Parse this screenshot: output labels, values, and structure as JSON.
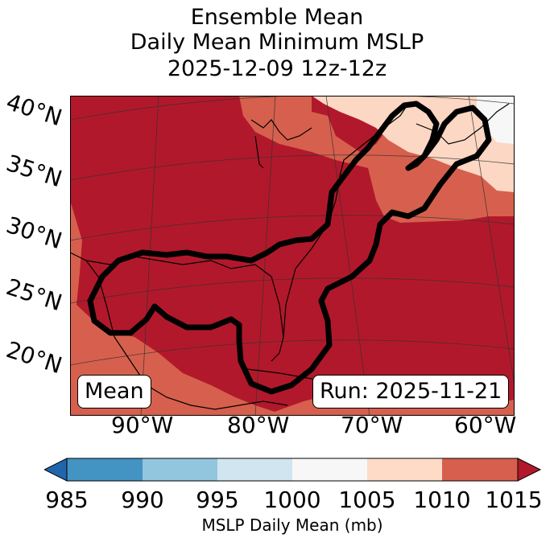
{
  "title": {
    "line1": "Ensemble Mean",
    "line2": "Daily Mean Minimum MSLP",
    "line3": "2025-12-09 12z-12z"
  },
  "lat_labels": [
    "40°N",
    "35°N",
    "30°N",
    "25°N",
    "20°N"
  ],
  "lon_labels": [
    "90°W",
    "80°W",
    "70°W",
    "60°W"
  ],
  "map_extent": {
    "lon_min": -97,
    "lon_max": -58,
    "lat_min": 15,
    "lat_max": 42
  },
  "field_colors": {
    "985-990": "#2f79b5",
    "990-995": "#8dc2df",
    "995-1000": "#d1e5f0",
    "1000-1005": "#f7f7f7",
    "1005-1010": "#fcd7c3",
    "1010-1015": "#d6604d",
    "1015+": "#b2182b"
  },
  "contour_color": "#000000",
  "boxes": {
    "left": "Mean",
    "right": "Run: 2025-11-21"
  },
  "colorbar": {
    "ticks": [
      "985",
      "990",
      "995",
      "1000",
      "1005",
      "1010",
      "1015"
    ],
    "colors": [
      "#2166ac",
      "#4393c3",
      "#92c5de",
      "#d1e5f0",
      "#f7f7f7",
      "#fddbc7",
      "#d6604d",
      "#b2182b"
    ],
    "label": "MSLP Daily Mean (mb)"
  }
}
